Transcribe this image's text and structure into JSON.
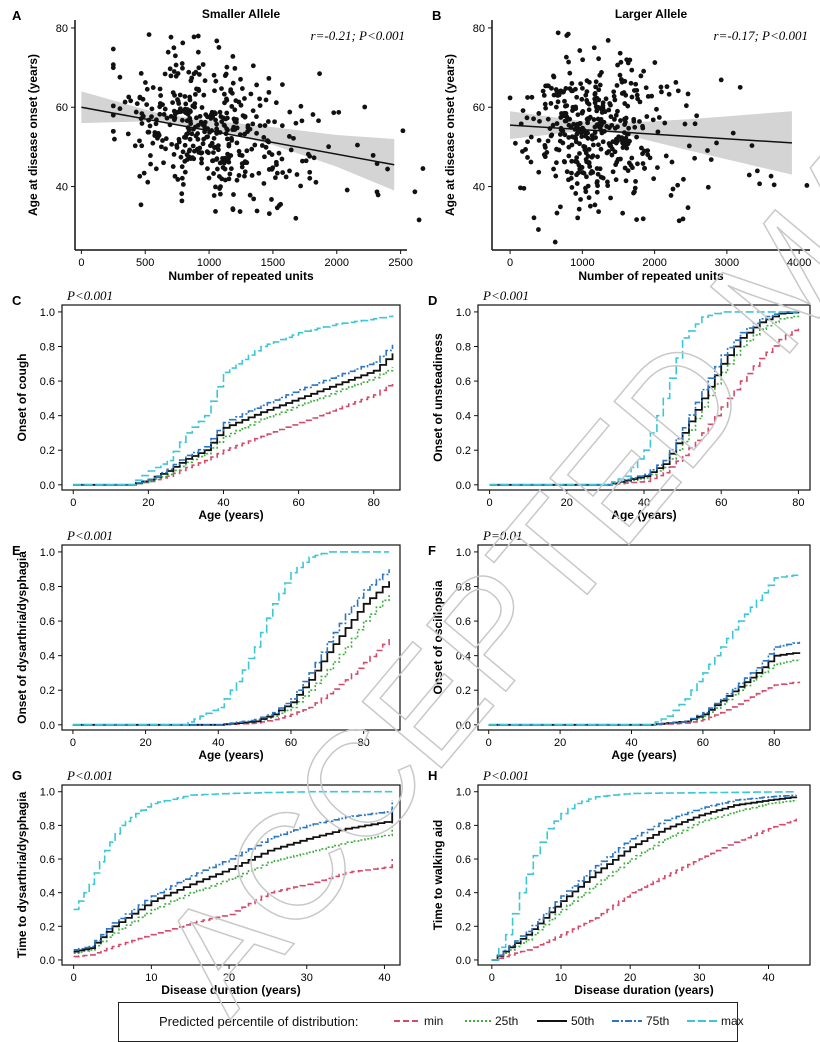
{
  "legend": {
    "title": "Predicted percentile of distribution:",
    "items": [
      {
        "label": "min",
        "color": "#d44a6a",
        "dash": "6,3"
      },
      {
        "label": "25th",
        "color": "#3fae3f",
        "dash": "2,2"
      },
      {
        "label": "50th",
        "color": "#111111",
        "dash": ""
      },
      {
        "label": "75th",
        "color": "#2a75c4",
        "dash": "7,2,2,2"
      },
      {
        "label": "max",
        "color": "#3cc7d6",
        "dash": "8,3"
      }
    ]
  },
  "watermark": "ACCEPTED MANUSCRIPT",
  "chart_data": [
    {
      "panel": "A",
      "type": "scatter",
      "title": "Smaller Allele",
      "annotation": "r=-0.21; P<0.001",
      "xlabel": "Number of repeated units",
      "ylabel": "Age at disease onset (years)",
      "xlim": [
        -50,
        2550
      ],
      "ylim": [
        24,
        82
      ],
      "xticks": [
        0,
        500,
        1000,
        1500,
        2000,
        2500
      ],
      "yticks": [
        40,
        60,
        80
      ],
      "regression": {
        "x": [
          0,
          2450
        ],
        "y": [
          60,
          45.5
        ]
      },
      "confidence_band": {
        "x": [
          0,
          600,
          1000,
          1500,
          2000,
          2450
        ],
        "lower": [
          56,
          56.5,
          54.3,
          50.5,
          45,
          39
        ],
        "upper": [
          64,
          58.5,
          56.7,
          55,
          53,
          52
        ]
      }
    },
    {
      "panel": "B",
      "type": "scatter",
      "title": "Larger Allele",
      "annotation": "r=-0.17; P<0.001",
      "xlabel": "Number of repeated units",
      "ylabel": "Age at disease onset (years)",
      "xlim": [
        -250,
        4150
      ],
      "ylim": [
        24,
        82
      ],
      "xticks": [
        0,
        1000,
        2000,
        3000,
        4000
      ],
      "yticks": [
        40,
        60,
        80
      ],
      "regression": {
        "x": [
          0,
          3900
        ],
        "y": [
          55.5,
          51
        ]
      },
      "confidence_band": {
        "x": [
          0,
          1000,
          1500,
          2500,
          3900
        ],
        "lower": [
          52,
          54,
          53.5,
          49,
          43
        ],
        "upper": [
          59,
          56.5,
          56,
          57,
          59
        ]
      }
    },
    {
      "panel": "C",
      "type": "line",
      "annotation": "P<0.001",
      "xlabel": "Age (years)",
      "ylabel": "Onset of cough",
      "xlim": [
        -3,
        87
      ],
      "ylim": [
        -0.03,
        1.04
      ],
      "xticks": [
        0,
        20,
        40,
        60,
        80
      ],
      "yticks": [
        0.0,
        0.2,
        0.4,
        0.6,
        0.8,
        1.0
      ],
      "series": [
        {
          "name": "min",
          "x": [
            0,
            15,
            20,
            25,
            30,
            35,
            40,
            50,
            60,
            70,
            80,
            85
          ],
          "y": [
            0,
            0,
            0.02,
            0.05,
            0.1,
            0.14,
            0.2,
            0.28,
            0.36,
            0.44,
            0.52,
            0.6
          ]
        },
        {
          "name": "25th",
          "x": [
            0,
            15,
            20,
            25,
            30,
            35,
            40,
            50,
            60,
            70,
            80,
            85
          ],
          "y": [
            0,
            0,
            0.02,
            0.06,
            0.13,
            0.18,
            0.28,
            0.38,
            0.46,
            0.54,
            0.62,
            0.68
          ]
        },
        {
          "name": "50th",
          "x": [
            0,
            15,
            20,
            25,
            30,
            35,
            40,
            50,
            60,
            70,
            80,
            85
          ],
          "y": [
            0,
            0,
            0.03,
            0.08,
            0.15,
            0.2,
            0.33,
            0.42,
            0.5,
            0.58,
            0.66,
            0.76
          ]
        },
        {
          "name": "75th",
          "x": [
            0,
            15,
            20,
            25,
            30,
            35,
            40,
            50,
            60,
            70,
            80,
            85
          ],
          "y": [
            0,
            0,
            0.03,
            0.09,
            0.17,
            0.22,
            0.36,
            0.46,
            0.55,
            0.63,
            0.71,
            0.81
          ]
        },
        {
          "name": "max",
          "x": [
            0,
            15,
            20,
            25,
            30,
            35,
            40,
            50,
            60,
            70,
            80,
            85
          ],
          "y": [
            0,
            0,
            0.08,
            0.14,
            0.3,
            0.4,
            0.65,
            0.8,
            0.88,
            0.93,
            0.96,
            0.98
          ]
        }
      ]
    },
    {
      "panel": "D",
      "type": "line",
      "annotation": "P<0.001",
      "xlabel": "Age (years)",
      "ylabel": "Onset of unsteadiness",
      "xlim": [
        -3,
        83
      ],
      "ylim": [
        -0.03,
        1.04
      ],
      "xticks": [
        0,
        20,
        40,
        60,
        80
      ],
      "yticks": [
        0.0,
        0.2,
        0.4,
        0.6,
        0.8,
        1.0
      ],
      "series": [
        {
          "name": "min",
          "x": [
            0,
            30,
            40,
            45,
            50,
            55,
            60,
            65,
            70,
            75,
            80
          ],
          "y": [
            0,
            0,
            0.02,
            0.07,
            0.17,
            0.3,
            0.45,
            0.6,
            0.73,
            0.84,
            0.92
          ]
        },
        {
          "name": "25th",
          "x": [
            0,
            30,
            40,
            45,
            50,
            55,
            60,
            65,
            70,
            75,
            80
          ],
          "y": [
            0,
            0,
            0.04,
            0.1,
            0.25,
            0.45,
            0.65,
            0.8,
            0.9,
            0.96,
            0.98
          ]
        },
        {
          "name": "50th",
          "x": [
            0,
            30,
            40,
            45,
            50,
            55,
            60,
            65,
            70,
            75,
            80
          ],
          "y": [
            0,
            0,
            0.05,
            0.12,
            0.3,
            0.5,
            0.7,
            0.85,
            0.94,
            0.99,
            1.0
          ]
        },
        {
          "name": "75th",
          "x": [
            0,
            30,
            40,
            45,
            50,
            55,
            60,
            65,
            70,
            75,
            80
          ],
          "y": [
            0,
            0,
            0.06,
            0.14,
            0.33,
            0.55,
            0.75,
            0.88,
            0.96,
            1.0,
            1.0
          ]
        },
        {
          "name": "max",
          "x": [
            0,
            30,
            35,
            40,
            45,
            50,
            55,
            60,
            65,
            80
          ],
          "y": [
            0,
            0,
            0.05,
            0.2,
            0.5,
            0.85,
            0.97,
            1.0,
            1.0,
            1.0
          ]
        }
      ]
    },
    {
      "panel": "E",
      "type": "line",
      "annotation": "P<0.001",
      "xlabel": "Age (years)",
      "ylabel": "Onset of dysarthria/dysphagia",
      "xlim": [
        -3,
        90
      ],
      "ylim": [
        -0.03,
        1.04
      ],
      "xticks": [
        0,
        20,
        40,
        60,
        80
      ],
      "yticks": [
        0.0,
        0.2,
        0.4,
        0.6,
        0.8,
        1.0
      ],
      "series": [
        {
          "name": "min",
          "x": [
            0,
            40,
            50,
            55,
            60,
            65,
            70,
            75,
            80,
            87
          ],
          "y": [
            0,
            0,
            0.01,
            0.03,
            0.06,
            0.1,
            0.18,
            0.26,
            0.36,
            0.5
          ]
        },
        {
          "name": "25th",
          "x": [
            0,
            40,
            50,
            55,
            60,
            65,
            70,
            75,
            80,
            87
          ],
          "y": [
            0,
            0,
            0.02,
            0.05,
            0.1,
            0.2,
            0.32,
            0.45,
            0.6,
            0.76
          ]
        },
        {
          "name": "50th",
          "x": [
            0,
            40,
            50,
            55,
            60,
            65,
            70,
            75,
            80,
            87
          ],
          "y": [
            0,
            0,
            0.02,
            0.06,
            0.13,
            0.26,
            0.42,
            0.56,
            0.7,
            0.83
          ]
        },
        {
          "name": "75th",
          "x": [
            0,
            40,
            50,
            55,
            60,
            65,
            70,
            75,
            80,
            87
          ],
          "y": [
            0,
            0,
            0.03,
            0.07,
            0.15,
            0.3,
            0.48,
            0.64,
            0.78,
            0.9
          ]
        },
        {
          "name": "max",
          "x": [
            0,
            30,
            35,
            40,
            45,
            50,
            55,
            60,
            65,
            70,
            87
          ],
          "y": [
            0,
            0,
            0.05,
            0.1,
            0.25,
            0.45,
            0.7,
            0.88,
            0.97,
            1.0,
            1.0
          ]
        }
      ]
    },
    {
      "panel": "F",
      "type": "line",
      "annotation": "P=0.01",
      "xlabel": "Age (years)",
      "ylabel": "Onset of oscillopsia",
      "xlim": [
        -3,
        90
      ],
      "ylim": [
        -0.03,
        1.04
      ],
      "xticks": [
        0,
        20,
        40,
        60,
        80
      ],
      "yticks": [
        0.0,
        0.2,
        0.4,
        0.6,
        0.8,
        1.0
      ],
      "series": [
        {
          "name": "min",
          "x": [
            0,
            45,
            55,
            60,
            65,
            70,
            75,
            80,
            87
          ],
          "y": [
            0,
            0,
            0.01,
            0.03,
            0.07,
            0.12,
            0.18,
            0.23,
            0.25
          ]
        },
        {
          "name": "25th",
          "x": [
            0,
            45,
            55,
            60,
            65,
            70,
            75,
            80,
            87
          ],
          "y": [
            0,
            0,
            0.02,
            0.05,
            0.12,
            0.2,
            0.28,
            0.35,
            0.38
          ]
        },
        {
          "name": "50th",
          "x": [
            0,
            45,
            55,
            60,
            65,
            70,
            75,
            80,
            87
          ],
          "y": [
            0,
            0,
            0.02,
            0.06,
            0.14,
            0.22,
            0.3,
            0.4,
            0.42
          ]
        },
        {
          "name": "75th",
          "x": [
            0,
            45,
            55,
            60,
            65,
            70,
            75,
            80,
            87
          ],
          "y": [
            0,
            0,
            0.02,
            0.07,
            0.15,
            0.24,
            0.33,
            0.45,
            0.48
          ]
        },
        {
          "name": "max",
          "x": [
            0,
            45,
            50,
            55,
            60,
            65,
            70,
            75,
            80,
            87
          ],
          "y": [
            0,
            0,
            0.05,
            0.15,
            0.3,
            0.45,
            0.6,
            0.72,
            0.85,
            0.87
          ]
        }
      ]
    },
    {
      "panel": "G",
      "type": "line",
      "annotation": "P<0.001",
      "xlabel": "Disease duration (years)",
      "ylabel": "Time to dysarthria/dysphagia",
      "xlim": [
        -1.5,
        42
      ],
      "ylim": [
        -0.03,
        1.04
      ],
      "xticks": [
        0,
        10,
        20,
        30,
        40
      ],
      "yticks": [
        0.0,
        0.2,
        0.4,
        0.6,
        0.8,
        1.0
      ],
      "series": [
        {
          "name": "min",
          "x": [
            0,
            2,
            5,
            10,
            15,
            20,
            25,
            30,
            35,
            40,
            41
          ],
          "y": [
            0.02,
            0.03,
            0.08,
            0.15,
            0.22,
            0.27,
            0.4,
            0.45,
            0.52,
            0.55,
            0.6
          ]
        },
        {
          "name": "25th",
          "x": [
            0,
            2,
            5,
            10,
            15,
            20,
            25,
            30,
            35,
            40,
            41
          ],
          "y": [
            0.04,
            0.06,
            0.16,
            0.3,
            0.4,
            0.48,
            0.58,
            0.64,
            0.7,
            0.74,
            0.85
          ]
        },
        {
          "name": "50th",
          "x": [
            0,
            2,
            5,
            10,
            15,
            20,
            25,
            30,
            35,
            40,
            41
          ],
          "y": [
            0.05,
            0.07,
            0.2,
            0.35,
            0.45,
            0.54,
            0.65,
            0.72,
            0.78,
            0.82,
            0.9
          ]
        },
        {
          "name": "75th",
          "x": [
            0,
            2,
            5,
            10,
            15,
            20,
            25,
            30,
            35,
            40,
            41
          ],
          "y": [
            0.06,
            0.08,
            0.22,
            0.38,
            0.5,
            0.6,
            0.72,
            0.8,
            0.85,
            0.88,
            0.95
          ]
        },
        {
          "name": "max",
          "x": [
            0,
            2,
            4,
            6,
            8,
            10,
            15,
            20,
            30,
            41
          ],
          "y": [
            0.3,
            0.45,
            0.65,
            0.8,
            0.87,
            0.93,
            0.98,
            0.99,
            1.0,
            1.0
          ]
        }
      ]
    },
    {
      "panel": "H",
      "type": "line",
      "annotation": "P<0.001",
      "xlabel": "Disease duration (years)",
      "ylabel": "Time to walking aid",
      "xlim": [
        -2,
        46
      ],
      "ylim": [
        -0.03,
        1.04
      ],
      "xticks": [
        0,
        10,
        20,
        30,
        40
      ],
      "yticks": [
        0.0,
        0.2,
        0.4,
        0.6,
        0.8,
        1.0
      ],
      "series": [
        {
          "name": "min",
          "x": [
            0,
            5,
            10,
            15,
            20,
            25,
            30,
            35,
            40,
            44
          ],
          "y": [
            0,
            0.06,
            0.15,
            0.25,
            0.4,
            0.5,
            0.6,
            0.7,
            0.78,
            0.84
          ]
        },
        {
          "name": "25th",
          "x": [
            0,
            5,
            10,
            15,
            20,
            25,
            30,
            35,
            40,
            44
          ],
          "y": [
            0,
            0.12,
            0.3,
            0.45,
            0.6,
            0.72,
            0.82,
            0.88,
            0.93,
            0.95
          ]
        },
        {
          "name": "50th",
          "x": [
            0,
            5,
            10,
            15,
            20,
            25,
            30,
            35,
            40,
            44
          ],
          "y": [
            0,
            0.15,
            0.35,
            0.52,
            0.67,
            0.78,
            0.86,
            0.92,
            0.95,
            0.97
          ]
        },
        {
          "name": "75th",
          "x": [
            0,
            5,
            10,
            15,
            20,
            25,
            30,
            35,
            40,
            44
          ],
          "y": [
            0,
            0.17,
            0.38,
            0.56,
            0.72,
            0.83,
            0.9,
            0.95,
            0.97,
            0.98
          ]
        },
        {
          "name": "max",
          "x": [
            0,
            2,
            4,
            6,
            8,
            10,
            12,
            15,
            20,
            44
          ],
          "y": [
            0,
            0.15,
            0.4,
            0.62,
            0.78,
            0.87,
            0.93,
            0.97,
            0.99,
            1.0
          ]
        }
      ]
    }
  ]
}
